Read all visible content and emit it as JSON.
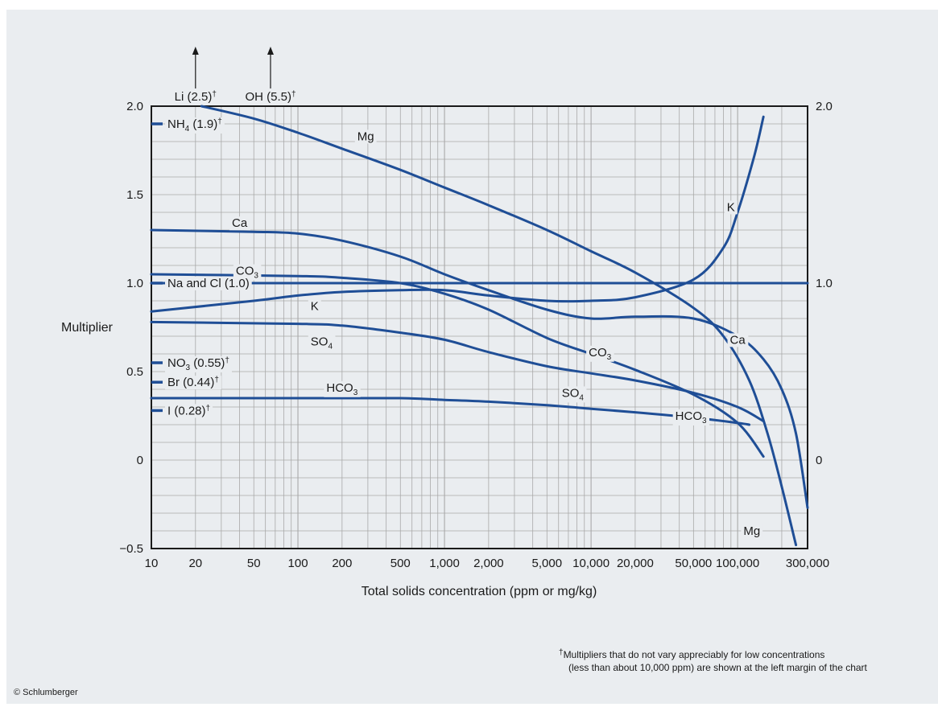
{
  "chart_data": {
    "type": "line",
    "x_scale": "log",
    "xlim": [
      10,
      300000
    ],
    "ylim": [
      -0.5,
      2.0
    ],
    "grid": true,
    "xlabel": "Total solids concentration (ppm or mg/kg)",
    "ylabel": "Multiplier",
    "x_ticks": [
      {
        "v": 10,
        "t": "10"
      },
      {
        "v": 20,
        "t": "20"
      },
      {
        "v": 50,
        "t": "50"
      },
      {
        "v": 100,
        "t": "100"
      },
      {
        "v": 200,
        "t": "200"
      },
      {
        "v": 500,
        "t": "500"
      },
      {
        "v": 1000,
        "t": "1,000"
      },
      {
        "v": 2000,
        "t": "2,000"
      },
      {
        "v": 5000,
        "t": "5,000"
      },
      {
        "v": 10000,
        "t": "10,000"
      },
      {
        "v": 20000,
        "t": "20,000"
      },
      {
        "v": 50000,
        "t": "50,000"
      },
      {
        "v": 100000,
        "t": "100,000"
      },
      {
        "v": 300000,
        "t": "300,000"
      }
    ],
    "y_ticks": [
      {
        "v": 2.0,
        "t": "2.0"
      },
      {
        "v": 1.5,
        "t": "1.5"
      },
      {
        "v": 1.0,
        "t": "1.0"
      },
      {
        "v": 0.5,
        "t": "0.5"
      },
      {
        "v": 0,
        "t": "0"
      },
      {
        "v": -0.5,
        "t": "−0.5"
      }
    ],
    "y_ticks_right": [
      {
        "v": 2.0,
        "t": "2.0"
      },
      {
        "v": 1.0,
        "t": "1.0"
      },
      {
        "v": 0,
        "t": "0"
      }
    ],
    "series": [
      {
        "name": "Mg",
        "x": [
          22,
          50,
          100,
          200,
          500,
          1000,
          2000,
          5000,
          10000,
          20000,
          50000,
          80000,
          120000,
          160000,
          200000,
          250000
        ],
        "y": [
          2.0,
          1.93,
          1.85,
          1.76,
          1.64,
          1.54,
          1.44,
          1.3,
          1.18,
          1.06,
          0.86,
          0.7,
          0.45,
          0.15,
          -0.15,
          -0.48
        ]
      },
      {
        "name": "Ca",
        "x": [
          10,
          50,
          100,
          200,
          500,
          1000,
          2000,
          5000,
          10000,
          20000,
          50000,
          100000,
          150000,
          200000,
          250000,
          300000
        ],
        "y": [
          1.3,
          1.29,
          1.28,
          1.24,
          1.15,
          1.05,
          0.96,
          0.85,
          0.8,
          0.81,
          0.8,
          0.7,
          0.57,
          0.4,
          0.15,
          -0.27
        ]
      },
      {
        "name": "CO3",
        "x": [
          10,
          100,
          200,
          500,
          1000,
          2000,
          5000,
          10000,
          20000,
          50000,
          100000,
          150000
        ],
        "y": [
          1.05,
          1.04,
          1.03,
          1.0,
          0.94,
          0.85,
          0.69,
          0.6,
          0.51,
          0.37,
          0.21,
          0.02
        ]
      },
      {
        "name": "Na and Cl (1.0)",
        "x": [
          10,
          300000
        ],
        "y": [
          1.0,
          1.0
        ]
      },
      {
        "name": "K",
        "x": [
          10,
          50,
          100,
          200,
          500,
          1000,
          2000,
          5000,
          10000,
          20000,
          50000,
          80000,
          100000,
          130000,
          150000
        ],
        "y": [
          0.84,
          0.9,
          0.93,
          0.95,
          0.96,
          0.96,
          0.93,
          0.9,
          0.9,
          0.92,
          1.02,
          1.2,
          1.4,
          1.72,
          1.94
        ]
      },
      {
        "name": "SO4",
        "x": [
          10,
          100,
          200,
          500,
          1000,
          2000,
          5000,
          10000,
          20000,
          50000,
          100000,
          150000
        ],
        "y": [
          0.78,
          0.77,
          0.76,
          0.72,
          0.68,
          0.61,
          0.53,
          0.49,
          0.45,
          0.38,
          0.3,
          0.22
        ]
      },
      {
        "name": "HCO3",
        "x": [
          10,
          100,
          500,
          1000,
          2000,
          5000,
          10000,
          20000,
          50000,
          100000,
          120000
        ],
        "y": [
          0.35,
          0.35,
          0.35,
          0.34,
          0.33,
          0.31,
          0.29,
          0.27,
          0.24,
          0.21,
          0.2
        ]
      }
    ],
    "curve_labels": [
      {
        "text": "Mg",
        "x": 290,
        "y": 1.83
      },
      {
        "text": "K",
        "x": 90000,
        "y": 1.43
      },
      {
        "text": "Ca",
        "x": 40,
        "y": 1.34
      },
      {
        "text": "CO",
        "sub": "3",
        "x": 45,
        "y": 1.07
      },
      {
        "text": "K",
        "x": 130,
        "y": 0.87
      },
      {
        "text": "SO",
        "sub": "4",
        "x": 145,
        "y": 0.67
      },
      {
        "text": "Ca",
        "x": 100000,
        "y": 0.68
      },
      {
        "text": "CO",
        "sub": "3",
        "x": 11500,
        "y": 0.61
      },
      {
        "text": "HCO",
        "sub": "3",
        "x": 200,
        "y": 0.41
      },
      {
        "text": "SO",
        "sub": "4",
        "x": 7500,
        "y": 0.38
      },
      {
        "text": "HCO",
        "sub": "3",
        "x": 48000,
        "y": 0.25
      },
      {
        "text": "Mg",
        "x": 125000,
        "y": -0.4
      }
    ],
    "margin_markers": [
      {
        "text": "NH",
        "sub": "4",
        "tail": " (1.9)",
        "dagger": true,
        "y": 1.9
      },
      {
        "text": "Na and Cl (1.0)",
        "sub": "",
        "tail": "",
        "dagger": false,
        "y": 1.0
      },
      {
        "text": "NO",
        "sub": "3",
        "tail": " (0.55)",
        "dagger": true,
        "y": 0.55
      },
      {
        "text": "Br (0.44)",
        "sub": "",
        "tail": "",
        "dagger": true,
        "y": 0.44
      },
      {
        "text": "I (0.28)",
        "sub": "",
        "tail": "",
        "dagger": true,
        "y": 0.28
      }
    ],
    "offscale_arrows": [
      {
        "text": "Li (2.5)",
        "dagger": true,
        "x": 20
      },
      {
        "text": "OH (5.5)",
        "dagger": true,
        "x": 65
      }
    ],
    "line_color": "#1f4e96",
    "grid_color": "#a9a9a9"
  },
  "footnote": {
    "marker": "†",
    "line1": "Multipliers that do not vary appreciably for low concentrations",
    "line2": "(less than about 10,000 ppm) are shown at the left margin of the chart"
  },
  "copyright": "© Schlumberger"
}
